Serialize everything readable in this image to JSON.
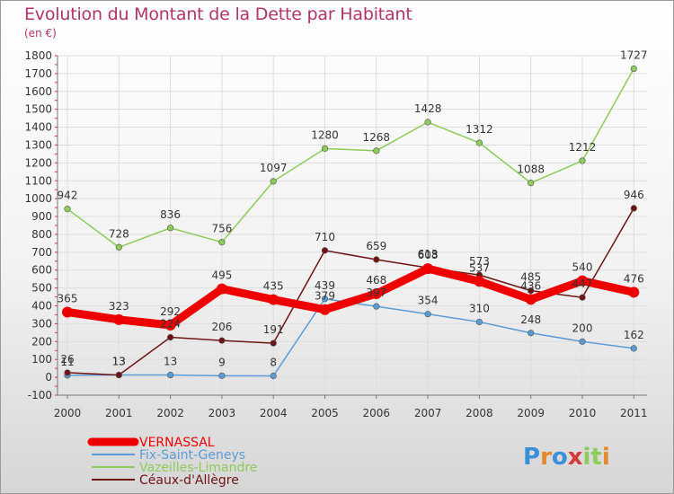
{
  "header": {
    "title": "Evolution du Montant de la Dette par Habitant",
    "subtitle": "(en €)"
  },
  "branding": {
    "logo_text": "Proxiti"
  },
  "chart_data": {
    "type": "line",
    "title": "Evolution du Montant de la Dette par Habitant",
    "ylabel": "(en €)",
    "xlabel": "",
    "ylim": [
      -100,
      1800
    ],
    "yticks": [
      -100,
      0,
      100,
      200,
      300,
      400,
      500,
      600,
      700,
      800,
      900,
      1000,
      1100,
      1200,
      1300,
      1400,
      1500,
      1600,
      1700,
      1800
    ],
    "x": [
      "2000",
      "2001",
      "2002",
      "2003",
      "2004",
      "2005",
      "2006",
      "2007",
      "2008",
      "2009",
      "2010",
      "2011"
    ],
    "grid": true,
    "legend_position": "bottom-left",
    "series": [
      {
        "name": "VERNASSAL",
        "color": "#ee0000",
        "values": [
          365,
          323,
          292,
          495,
          435,
          379,
          468,
          608,
          537,
          436,
          540,
          476
        ]
      },
      {
        "name": "Fix-Saint-Geneys",
        "color": "#5b9bd5",
        "values": [
          11,
          13,
          13,
          9,
          8,
          439,
          397,
          354,
          310,
          248,
          200,
          162
        ]
      },
      {
        "name": "Vazeilles-Limandre",
        "color": "#8ccc5a",
        "values": [
          942,
          728,
          836,
          756,
          1097,
          1280,
          1268,
          1428,
          1312,
          1088,
          1212,
          1727
        ]
      },
      {
        "name": "Céaux-d'Allègre",
        "color": "#6e1414",
        "values": [
          26,
          13,
          224,
          206,
          191,
          710,
          659,
          613,
          573,
          485,
          447,
          946
        ]
      }
    ]
  }
}
